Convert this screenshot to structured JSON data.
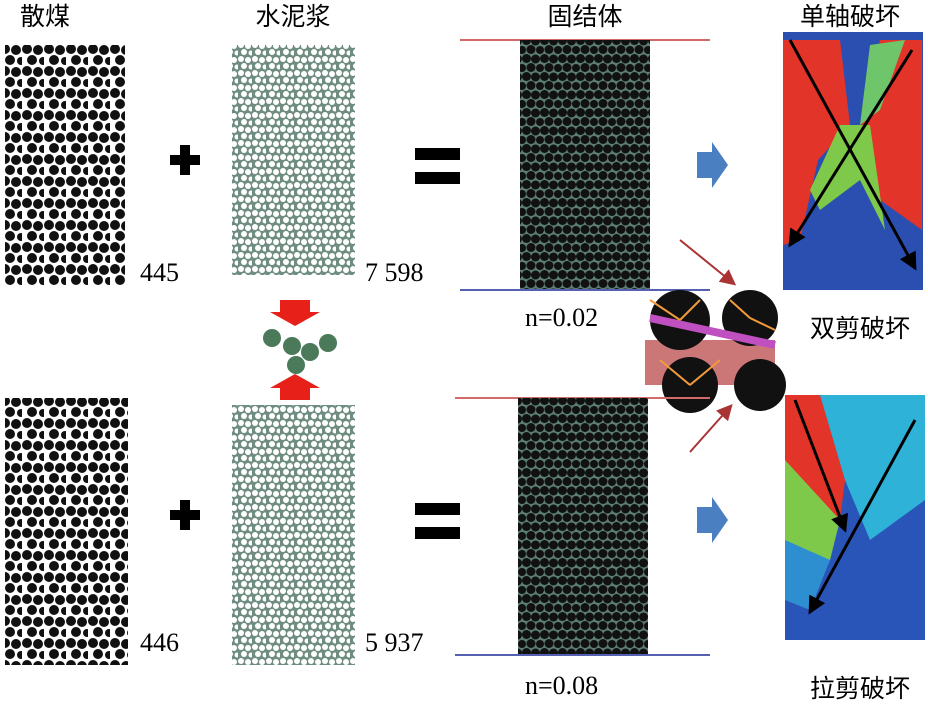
{
  "top_row": {
    "coal_label": "散煤",
    "coal_count": "445",
    "grout_label": "水泥浆",
    "grout_count": "7 598",
    "body_label": "固结体",
    "porosity": "n=0.02",
    "failure_label": "单轴破坏",
    "failure_mode": "双剪破坏"
  },
  "bottom_row": {
    "coal_count": "446",
    "grout_count": "5 937",
    "porosity": "n=0.08",
    "failure_mode": "拉剪破坏"
  }
}
